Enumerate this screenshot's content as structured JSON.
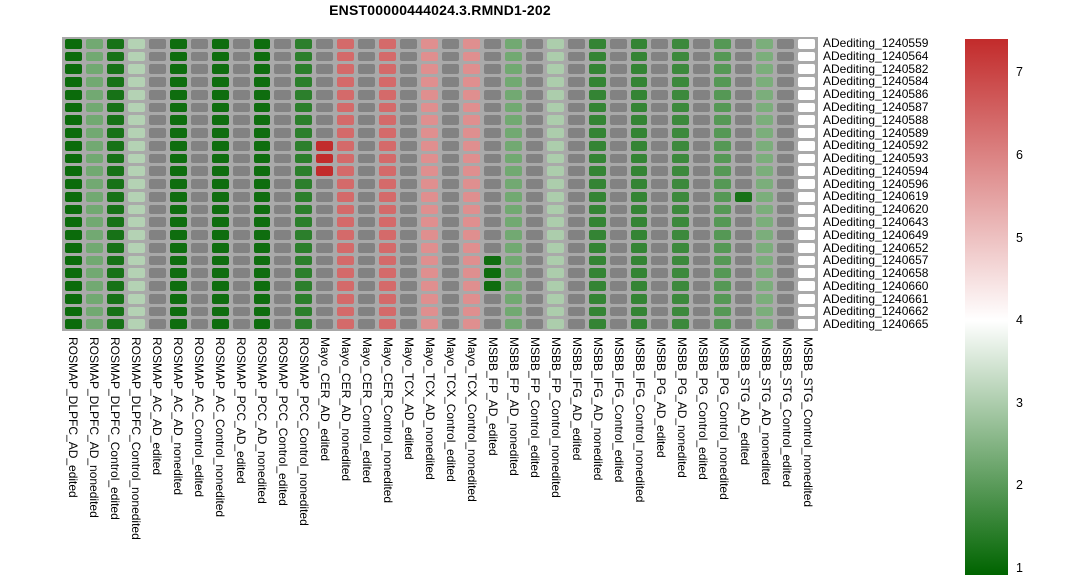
{
  "figure": {
    "background": "#ffffff"
  },
  "chart_data": {
    "type": "heatmap",
    "title": "ENST00000444024.3.RMND1-202",
    "legend_position": "right",
    "grid_background": "#a9a9a9",
    "na_color": "#828282",
    "colormap": {
      "low": "#006400",
      "mid": "#ffffff",
      "high": "#c22b2b",
      "midpoint": 4.0,
      "min": 0.92,
      "max": 7.41
    },
    "colorbar_ticks": [
      7,
      6,
      5,
      4,
      3,
      2,
      1
    ],
    "rows": [
      "ADediting_1240559",
      "ADediting_1240564",
      "ADediting_1240582",
      "ADediting_1240584",
      "ADediting_1240586",
      "ADediting_1240587",
      "ADediting_1240588",
      "ADediting_1240589",
      "ADediting_1240592",
      "ADediting_1240593",
      "ADediting_1240594",
      "ADediting_1240596",
      "ADediting_1240619",
      "ADediting_1240620",
      "ADediting_1240643",
      "ADediting_1240649",
      "ADediting_1240652",
      "ADediting_1240657",
      "ADediting_1240658",
      "ADediting_1240660",
      "ADediting_1240661",
      "ADediting_1240662",
      "ADediting_1240665"
    ],
    "columns": [
      "ROSMAP_DLPFC_AD_edited",
      "ROSMAP_DLPFC_AD_nonedited",
      "ROSMAP_DLPFC_Control_edited",
      "ROSMAP_DLPFC_Control_nonedited",
      "ROSMAP_AC_AD_edited",
      "ROSMAP_AC_AD_nonedited",
      "ROSMAP_AC_Control_edited",
      "ROSMAP_AC_Control_nonedited",
      "ROSMAP_PCC_AD_edited",
      "ROSMAP_PCC_AD_nonedited",
      "ROSMAP_PCC_Control_edited",
      "ROSMAP_PCC_Control_nonedited",
      "Mayo_CER_AD_edited",
      "Mayo_CER_AD_nonedited",
      "Mayo_CER_Control_edited",
      "Mayo_CER_Control_nonedited",
      "Mayo_TCX_AD_edited",
      "Mayo_TCX_AD_nonedited",
      "Mayo_TCX_Control_edited",
      "Mayo_TCX_Control_nonedited",
      "MSBB_FP_AD_edited",
      "MSBB_FP_AD_nonedited",
      "MSBB_FP_Control_edited",
      "MSBB_FP_Control_nonedited",
      "MSBB_IFG_AD_edited",
      "MSBB_IFG_AD_nonedited",
      "MSBB_IFG_Control_edited",
      "MSBB_IFG_Control_nonedited",
      "MSBB_PG_AD_edited",
      "MSBB_PG_AD_nonedited",
      "MSBB_PG_Control_edited",
      "MSBB_PG_Control_nonedited",
      "MSBB_STG_AD_edited",
      "MSBB_STG_AD_nonedited",
      "MSBB_STG_Control_edited",
      "MSBB_STG_Control_nonedited"
    ],
    "values": [
      [
        1.05,
        2.3,
        1.2,
        3.1,
        null,
        1.1,
        null,
        1.1,
        null,
        1.1,
        null,
        1.45,
        null,
        6.4,
        null,
        6.4,
        null,
        5.8,
        null,
        5.8,
        null,
        2.3,
        null,
        3.0,
        null,
        1.55,
        null,
        1.55,
        null,
        1.65,
        null,
        1.95,
        null,
        2.4,
        null,
        4.0
      ],
      [
        1.05,
        2.3,
        1.2,
        3.1,
        null,
        1.1,
        null,
        1.1,
        null,
        1.1,
        null,
        1.45,
        null,
        6.4,
        null,
        6.4,
        null,
        5.8,
        null,
        5.8,
        null,
        2.3,
        null,
        3.0,
        null,
        1.55,
        null,
        1.55,
        null,
        1.65,
        null,
        1.95,
        null,
        2.4,
        null,
        4.0
      ],
      [
        1.05,
        2.3,
        1.2,
        3.1,
        null,
        1.1,
        null,
        1.1,
        null,
        1.1,
        null,
        1.45,
        null,
        6.4,
        null,
        6.4,
        null,
        5.8,
        null,
        5.8,
        null,
        2.3,
        null,
        3.0,
        null,
        1.55,
        null,
        1.55,
        null,
        1.65,
        null,
        1.95,
        null,
        2.4,
        null,
        4.0
      ],
      [
        1.05,
        2.3,
        1.2,
        3.1,
        null,
        1.1,
        null,
        1.1,
        null,
        1.1,
        null,
        1.45,
        null,
        6.4,
        null,
        6.4,
        null,
        5.8,
        null,
        5.8,
        null,
        2.3,
        null,
        3.0,
        null,
        1.55,
        null,
        1.55,
        null,
        1.65,
        null,
        1.95,
        null,
        2.4,
        null,
        4.0
      ],
      [
        1.05,
        2.3,
        1.2,
        3.1,
        null,
        1.1,
        null,
        1.1,
        null,
        1.1,
        null,
        1.45,
        null,
        6.4,
        null,
        6.4,
        null,
        5.8,
        null,
        5.8,
        null,
        2.3,
        null,
        3.0,
        null,
        1.55,
        null,
        1.55,
        null,
        1.65,
        null,
        1.95,
        null,
        2.4,
        null,
        4.0
      ],
      [
        1.05,
        2.3,
        1.2,
        3.1,
        null,
        1.1,
        null,
        1.1,
        null,
        1.1,
        null,
        1.45,
        null,
        6.4,
        null,
        6.4,
        null,
        5.8,
        null,
        5.8,
        null,
        2.3,
        null,
        3.0,
        null,
        1.55,
        null,
        1.55,
        null,
        1.65,
        null,
        1.95,
        null,
        2.4,
        null,
        4.0
      ],
      [
        1.05,
        2.3,
        1.2,
        3.1,
        null,
        1.1,
        null,
        1.1,
        null,
        1.1,
        null,
        1.45,
        null,
        6.4,
        null,
        6.4,
        null,
        5.8,
        null,
        5.8,
        null,
        2.3,
        null,
        3.0,
        null,
        1.55,
        null,
        1.55,
        null,
        1.65,
        null,
        1.95,
        null,
        2.4,
        null,
        4.0
      ],
      [
        1.05,
        2.3,
        1.2,
        3.1,
        null,
        1.1,
        null,
        1.1,
        null,
        1.1,
        null,
        1.45,
        null,
        6.4,
        null,
        6.4,
        null,
        5.8,
        null,
        5.8,
        null,
        2.3,
        null,
        3.0,
        null,
        1.55,
        null,
        1.55,
        null,
        1.65,
        null,
        1.95,
        null,
        2.4,
        null,
        4.0
      ],
      [
        1.05,
        2.3,
        1.2,
        3.1,
        null,
        1.1,
        null,
        1.1,
        null,
        1.1,
        null,
        1.45,
        7.4,
        6.4,
        null,
        6.4,
        null,
        5.8,
        null,
        5.8,
        null,
        2.3,
        null,
        3.0,
        null,
        1.55,
        null,
        1.55,
        null,
        1.65,
        null,
        1.95,
        null,
        2.4,
        null,
        4.0
      ],
      [
        1.05,
        2.3,
        1.2,
        3.1,
        null,
        1.1,
        null,
        1.1,
        null,
        1.1,
        null,
        1.45,
        7.4,
        6.4,
        null,
        6.4,
        null,
        5.8,
        null,
        5.8,
        null,
        2.3,
        null,
        3.0,
        null,
        1.55,
        null,
        1.55,
        null,
        1.65,
        null,
        1.95,
        null,
        2.4,
        null,
        4.0
      ],
      [
        1.05,
        2.3,
        1.2,
        3.1,
        null,
        1.1,
        null,
        1.1,
        null,
        1.1,
        null,
        1.45,
        7.4,
        6.4,
        null,
        6.4,
        null,
        5.8,
        null,
        5.8,
        null,
        2.3,
        null,
        3.0,
        null,
        1.55,
        null,
        1.55,
        null,
        1.65,
        null,
        1.95,
        null,
        2.4,
        null,
        4.0
      ],
      [
        1.05,
        2.3,
        1.2,
        3.1,
        null,
        1.1,
        null,
        1.1,
        null,
        1.1,
        null,
        1.45,
        null,
        6.4,
        null,
        6.4,
        null,
        5.8,
        null,
        5.8,
        null,
        2.3,
        null,
        3.0,
        null,
        1.55,
        null,
        1.55,
        null,
        1.65,
        null,
        1.95,
        null,
        2.4,
        null,
        4.0
      ],
      [
        1.05,
        2.3,
        1.2,
        3.1,
        null,
        1.1,
        null,
        1.1,
        null,
        1.1,
        null,
        1.45,
        null,
        6.4,
        null,
        6.4,
        null,
        5.8,
        null,
        5.8,
        null,
        2.3,
        null,
        3.0,
        null,
        1.55,
        null,
        1.55,
        null,
        1.65,
        null,
        1.95,
        1.2,
        2.4,
        null,
        4.0
      ],
      [
        1.05,
        2.3,
        1.2,
        3.1,
        null,
        1.1,
        null,
        1.1,
        null,
        1.1,
        null,
        1.45,
        null,
        6.4,
        null,
        6.4,
        null,
        5.8,
        null,
        5.8,
        null,
        2.3,
        null,
        3.0,
        null,
        1.55,
        null,
        1.55,
        null,
        1.65,
        null,
        1.95,
        null,
        2.4,
        null,
        4.0
      ],
      [
        1.05,
        2.3,
        1.2,
        3.1,
        null,
        1.1,
        null,
        1.1,
        null,
        1.1,
        null,
        1.45,
        null,
        6.4,
        null,
        6.4,
        null,
        5.8,
        null,
        5.8,
        null,
        2.3,
        null,
        3.0,
        null,
        1.55,
        null,
        1.55,
        null,
        1.65,
        null,
        1.95,
        null,
        2.4,
        null,
        4.0
      ],
      [
        1.05,
        2.3,
        1.2,
        3.1,
        null,
        1.1,
        null,
        1.1,
        null,
        1.1,
        null,
        1.45,
        null,
        6.4,
        null,
        6.4,
        null,
        5.8,
        null,
        5.8,
        null,
        2.3,
        null,
        3.0,
        null,
        1.55,
        null,
        1.55,
        null,
        1.65,
        null,
        1.95,
        null,
        2.4,
        null,
        4.0
      ],
      [
        1.05,
        2.3,
        1.2,
        3.1,
        null,
        1.1,
        null,
        1.1,
        null,
        1.1,
        null,
        1.45,
        null,
        6.4,
        null,
        6.4,
        null,
        5.8,
        null,
        5.8,
        null,
        2.3,
        null,
        3.0,
        null,
        1.55,
        null,
        1.55,
        null,
        1.65,
        null,
        1.95,
        null,
        2.4,
        null,
        4.0
      ],
      [
        1.05,
        2.3,
        1.2,
        3.1,
        null,
        1.1,
        null,
        1.1,
        null,
        1.1,
        null,
        1.45,
        null,
        6.4,
        null,
        6.4,
        null,
        5.8,
        null,
        5.8,
        1.1,
        2.3,
        null,
        3.0,
        null,
        1.55,
        null,
        1.55,
        null,
        1.65,
        null,
        1.95,
        null,
        2.4,
        null,
        4.0
      ],
      [
        1.05,
        2.3,
        1.2,
        3.1,
        null,
        1.1,
        null,
        1.1,
        null,
        1.1,
        null,
        1.45,
        null,
        6.4,
        null,
        6.4,
        null,
        5.8,
        null,
        5.8,
        1.1,
        2.3,
        null,
        3.0,
        null,
        1.55,
        null,
        1.55,
        null,
        1.65,
        null,
        1.95,
        null,
        2.4,
        null,
        4.0
      ],
      [
        1.05,
        2.3,
        1.2,
        3.1,
        null,
        1.1,
        null,
        1.1,
        null,
        1.1,
        null,
        1.45,
        null,
        6.4,
        null,
        6.4,
        null,
        5.8,
        null,
        5.8,
        1.1,
        2.3,
        null,
        3.0,
        null,
        1.55,
        null,
        1.55,
        null,
        1.65,
        null,
        1.95,
        null,
        2.4,
        null,
        4.0
      ],
      [
        1.05,
        2.3,
        1.2,
        3.1,
        null,
        1.1,
        null,
        1.1,
        null,
        1.1,
        null,
        1.45,
        null,
        6.4,
        null,
        6.4,
        null,
        5.8,
        null,
        5.8,
        null,
        2.3,
        null,
        3.0,
        null,
        1.55,
        null,
        1.55,
        null,
        1.65,
        null,
        1.95,
        null,
        2.4,
        null,
        4.0
      ],
      [
        1.05,
        2.3,
        1.2,
        3.1,
        null,
        1.1,
        null,
        1.1,
        null,
        1.1,
        null,
        1.45,
        null,
        6.4,
        null,
        6.4,
        null,
        5.8,
        null,
        5.8,
        null,
        2.3,
        null,
        3.0,
        null,
        1.55,
        null,
        1.55,
        null,
        1.65,
        null,
        1.95,
        null,
        2.4,
        null,
        4.0
      ],
      [
        1.05,
        2.3,
        1.2,
        3.1,
        null,
        1.1,
        null,
        1.1,
        null,
        1.1,
        null,
        1.45,
        null,
        6.4,
        null,
        6.4,
        null,
        5.8,
        null,
        5.8,
        null,
        2.3,
        null,
        3.0,
        null,
        1.55,
        null,
        1.55,
        null,
        1.65,
        null,
        1.95,
        null,
        2.4,
        null,
        4.0
      ]
    ]
  }
}
